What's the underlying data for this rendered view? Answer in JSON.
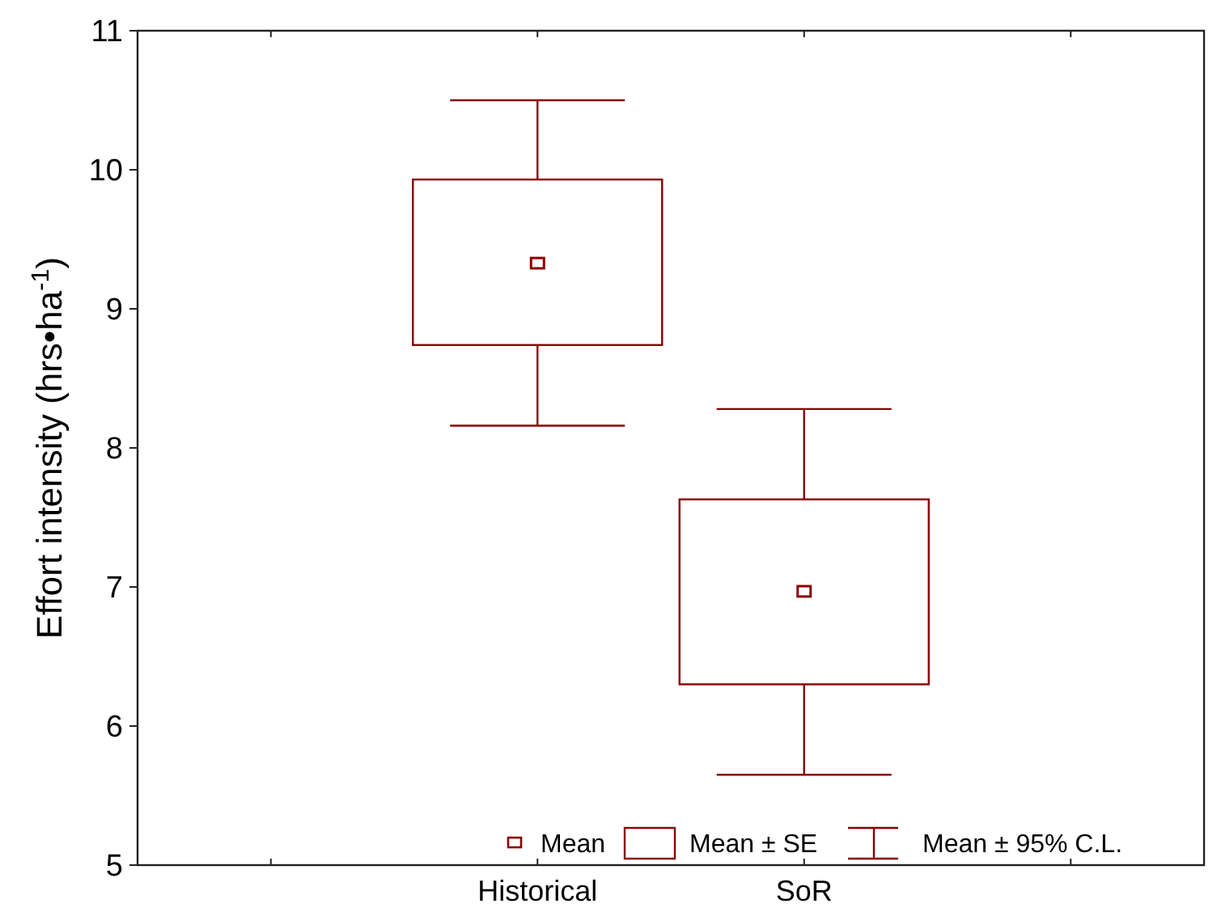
{
  "chart_data": {
    "type": "box",
    "ylabel": "Effort intensity (hrs•ha$^{-1}$)",
    "categories": [
      null,
      "Historical",
      "SoR",
      null
    ],
    "boxes": [
      null,
      {
        "low": 8.16,
        "q1": 8.74,
        "median": 9.33,
        "q3": 9.93,
        "high": 10.5
      },
      {
        "low": 5.65,
        "q1": 6.3,
        "median": 6.97,
        "q3": 7.63,
        "high": 8.28
      },
      null
    ],
    "color": "#8b0000",
    "ylim": [
      5,
      11
    ],
    "yticks": [
      5,
      6,
      7,
      8,
      9,
      10,
      11
    ],
    "grid": false,
    "marker": "square",
    "annotations": [
      "Mean",
      "Mean ± SE",
      "Mean ± 95% C.L."
    ]
  }
}
